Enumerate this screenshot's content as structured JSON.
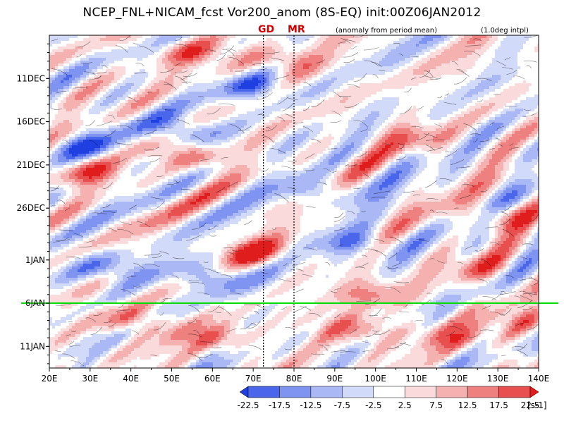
{
  "header": {
    "title": "NCEP_FNL+NICAM_fcst Vor200_anom (8S-EQ) init:00Z06JAN2012",
    "subtitle_left": "(anomaly from period mean)",
    "subtitle_right": "(1.0deg intpl)"
  },
  "markers": {
    "gd_label": "GD",
    "mr_label": "MR",
    "gd_lon": 72.5,
    "mr_lon": 80
  },
  "chart_data": {
    "type": "heatmap",
    "title": "NCEP_FNL+NICAM_fcst Vor200_anom (8S-EQ) init:00Z06JAN2012",
    "xlim": [
      20,
      140
    ],
    "x_ticks": [
      {
        "lon": 20,
        "label": "20E"
      },
      {
        "lon": 30,
        "label": "30E"
      },
      {
        "lon": 40,
        "label": "40E"
      },
      {
        "lon": 50,
        "label": "50E"
      },
      {
        "lon": 60,
        "label": "60E"
      },
      {
        "lon": 70,
        "label": "70E"
      },
      {
        "lon": 80,
        "label": "80E"
      },
      {
        "lon": 90,
        "label": "90E"
      },
      {
        "lon": 100,
        "label": "100E"
      },
      {
        "lon": 110,
        "label": "110E"
      },
      {
        "lon": 120,
        "label": "120E"
      },
      {
        "lon": 130,
        "label": "130E"
      },
      {
        "lon": 140,
        "label": "140E"
      }
    ],
    "y_ticks": [
      {
        "day": 5,
        "label": "11DEC"
      },
      {
        "day": 10,
        "label": "16DEC"
      },
      {
        "day": 15,
        "label": "21DEC"
      },
      {
        "day": 20,
        "label": "26DEC"
      },
      {
        "day": 26,
        "label": "1JAN"
      },
      {
        "day": 31,
        "label": "6JAN"
      },
      {
        "day": 36,
        "label": "11JAN"
      }
    ],
    "ylim_days": [
      0,
      38.5
    ],
    "forecast_init_day": 31,
    "forecast_line_color": "#00dd00",
    "colorbar": {
      "unit": "[s-1]",
      "levels": [
        "-22.5",
        "-17.5",
        "-12.5",
        "-7.5",
        "-2.5",
        "2.5",
        "7.5",
        "12.5",
        "17.5",
        "22.5"
      ],
      "colors": [
        "#1f3fe0",
        "#4a66ea",
        "#7f93f0",
        "#aab8f6",
        "#d2dafa",
        "#ffffff",
        "#fadada",
        "#f5b0b0",
        "#ef8080",
        "#e84f4f",
        "#e01d1d"
      ]
    },
    "features": [
      {
        "lon": 40,
        "day": 33,
        "sign": 1,
        "amp": 0.9
      },
      {
        "lon": 60,
        "day": 35,
        "sign": 1,
        "amp": 0.9
      },
      {
        "lon": 95,
        "day": 34,
        "sign": 1,
        "amp": 1.0
      },
      {
        "lon": 120,
        "day": 35,
        "sign": 1,
        "amp": 0.8
      },
      {
        "lon": 135,
        "day": 33,
        "sign": 1,
        "amp": 0.7
      },
      {
        "lon": 52,
        "day": 11,
        "sign": -1,
        "amp": 1.0
      },
      {
        "lon": 55,
        "day": 14,
        "sign": 1,
        "amp": 1.0
      },
      {
        "lon": 55,
        "day": 2,
        "sign": 1,
        "amp": 0.9
      },
      {
        "lon": 78,
        "day": 3,
        "sign": 1,
        "amp": 0.8
      },
      {
        "lon": 70,
        "day": 6,
        "sign": -1,
        "amp": 0.9
      },
      {
        "lon": 30,
        "day": 13,
        "sign": -1,
        "amp": 0.8
      },
      {
        "lon": 30,
        "day": 16,
        "sign": 1,
        "amp": 0.9
      },
      {
        "lon": 70,
        "day": 25,
        "sign": 1,
        "amp": 1.0
      },
      {
        "lon": 60,
        "day": 28,
        "sign": -1,
        "amp": 1.0
      },
      {
        "lon": 35,
        "day": 27,
        "sign": -1,
        "amp": 0.9
      },
      {
        "lon": 95,
        "day": 24,
        "sign": -1,
        "amp": 0.8
      },
      {
        "lon": 130,
        "day": 21,
        "sign": 1,
        "amp": 0.8
      },
      {
        "lon": 110,
        "day": 12,
        "sign": 1,
        "amp": 0.7
      },
      {
        "lon": 125,
        "day": 27,
        "sign": 1,
        "amp": 0.7
      },
      {
        "lon": 100,
        "day": 30,
        "sign": 1,
        "amp": 0.8
      },
      {
        "lon": 85,
        "day": 18,
        "sign": -1,
        "amp": 0.7
      }
    ]
  }
}
